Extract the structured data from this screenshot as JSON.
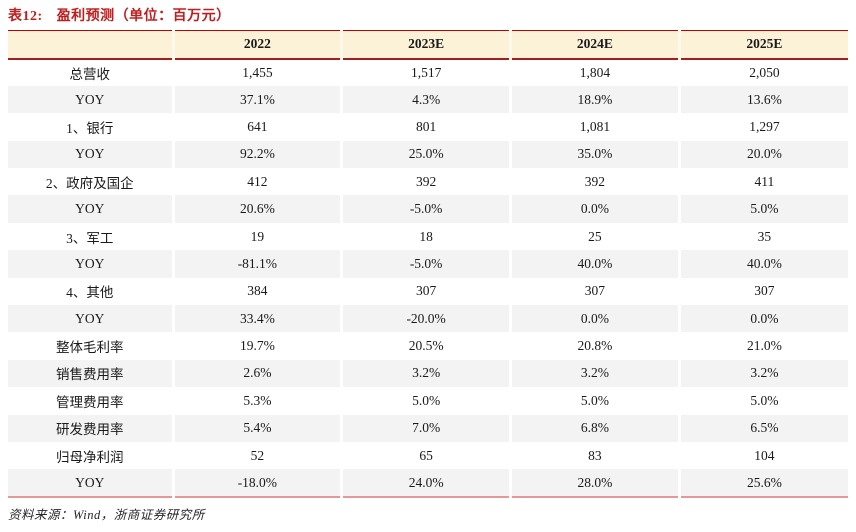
{
  "title": {
    "label": "表12:",
    "text": "盈利预测（单位：百万元）"
  },
  "table": {
    "columns": [
      "",
      "2022",
      "2023E",
      "2024E",
      "2025E"
    ],
    "rows": [
      {
        "label": "总营收",
        "values": [
          "1,455",
          "1,517",
          "1,804",
          "2,050"
        ]
      },
      {
        "label": "YOY",
        "values": [
          "37.1%",
          "4.3%",
          "18.9%",
          "13.6%"
        ]
      },
      {
        "label": "1、银行",
        "values": [
          "641",
          "801",
          "1,081",
          "1,297"
        ]
      },
      {
        "label": "YOY",
        "values": [
          "92.2%",
          "25.0%",
          "35.0%",
          "20.0%"
        ]
      },
      {
        "label": "2、政府及国企",
        "values": [
          "412",
          "392",
          "392",
          "411"
        ]
      },
      {
        "label": "YOY",
        "values": [
          "20.6%",
          "-5.0%",
          "0.0%",
          "5.0%"
        ]
      },
      {
        "label": "3、军工",
        "values": [
          "19",
          "18",
          "25",
          "35"
        ]
      },
      {
        "label": "YOY",
        "values": [
          "-81.1%",
          "-5.0%",
          "40.0%",
          "40.0%"
        ]
      },
      {
        "label": "4、其他",
        "values": [
          "384",
          "307",
          "307",
          "307"
        ]
      },
      {
        "label": "YOY",
        "values": [
          "33.4%",
          "-20.0%",
          "0.0%",
          "0.0%"
        ]
      },
      {
        "label": "整体毛利率",
        "values": [
          "19.7%",
          "20.5%",
          "20.8%",
          "21.0%"
        ]
      },
      {
        "label": "销售费用率",
        "values": [
          "2.6%",
          "3.2%",
          "3.2%",
          "3.2%"
        ]
      },
      {
        "label": "管理费用率",
        "values": [
          "5.3%",
          "5.0%",
          "5.0%",
          "5.0%"
        ]
      },
      {
        "label": "研发费用率",
        "values": [
          "5.4%",
          "7.0%",
          "6.8%",
          "6.5%"
        ]
      },
      {
        "label": "归母净利润",
        "values": [
          "52",
          "65",
          "83",
          "104"
        ]
      },
      {
        "label": "YOY",
        "values": [
          "-18.0%",
          "24.0%",
          "28.0%",
          "25.6%"
        ]
      }
    ]
  },
  "footer": {
    "source_text": "资料来源：Wind，浙商证券研究所"
  },
  "colors": {
    "title_red": "#BE1E1E",
    "header_bg": "#FCF2D8",
    "header_top_border": "#C00000",
    "header_bottom_border": "#A02020",
    "table_bottom_border": "#E59898",
    "stripe_bg": "#F3F3F3"
  }
}
